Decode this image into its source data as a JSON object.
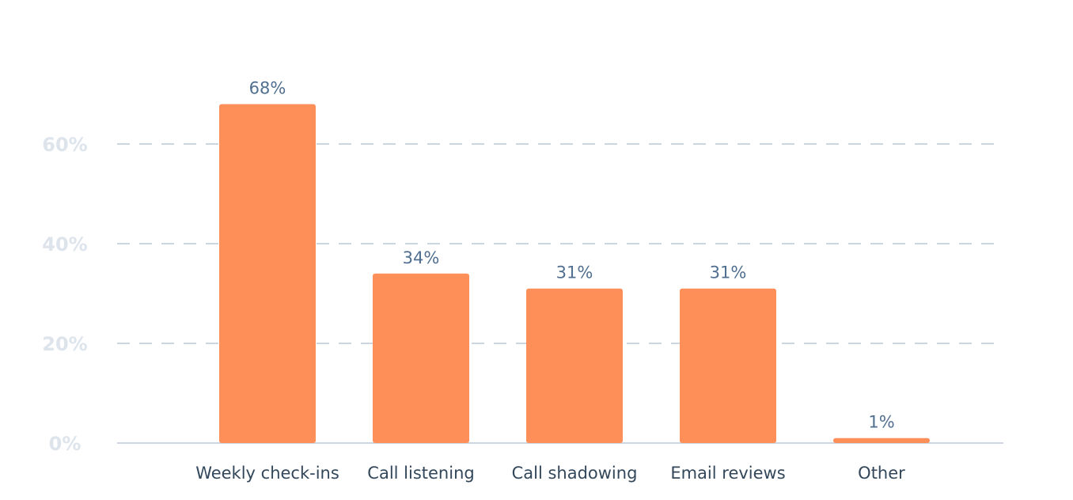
{
  "chart_data": {
    "type": "bar",
    "categories": [
      "Weekly check-ins",
      "Call listening",
      "Call shadowing",
      "Email reviews",
      "Other"
    ],
    "values": [
      68,
      34,
      31,
      31,
      1
    ],
    "data_labels": [
      "68%",
      "34%",
      "31%",
      "31%",
      "1%"
    ],
    "ytick_labels": [
      "0%",
      "20%",
      "40%",
      "60%"
    ],
    "title": "",
    "xlabel": "",
    "ylabel": "",
    "ylim": [
      0,
      80
    ],
    "grid": true,
    "legend": "none",
    "bar_color": "#ff8f59",
    "label_color": "#516f90",
    "category_color": "#33475b",
    "axis_color": "#dde4ec",
    "grid_color": "#cbd6e2"
  }
}
